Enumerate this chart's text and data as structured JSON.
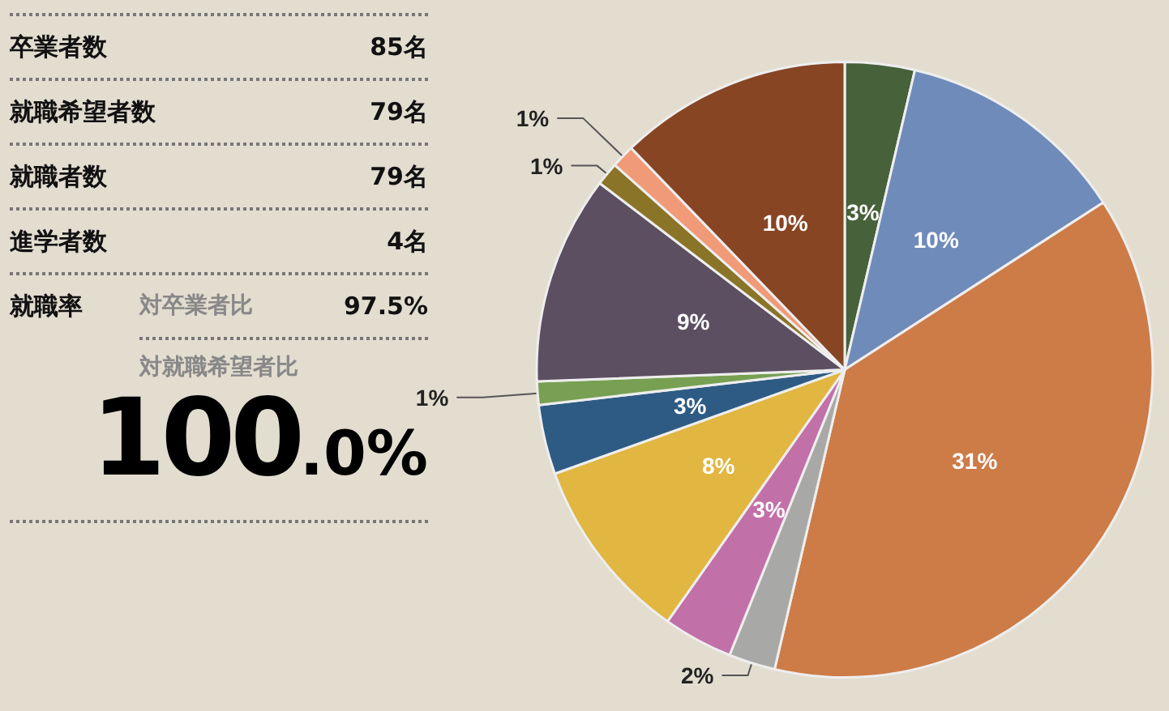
{
  "chart_data": [
    {
      "type": "other",
      "annotations": [
        "卒業者数",
        "85名",
        "就職希望者数",
        "79名",
        "就職者数",
        "79名",
        "進学者数",
        "4名",
        "就職率",
        "対卒業者比",
        "97.5%",
        "対就職希望者比",
        "100.0%"
      ]
    },
    {
      "type": "pie",
      "categories": [
        null,
        null,
        null,
        null,
        null,
        null,
        null,
        null,
        null,
        null,
        null,
        null
      ],
      "values": [
        3,
        10,
        31,
        2,
        3,
        8,
        3,
        1,
        9,
        1,
        1,
        10
      ],
      "value_labels": [
        "3%",
        "10%",
        "31%",
        "2%",
        "3%",
        "8%",
        "3%",
        "1%",
        "9%",
        "1%",
        "1%",
        "10%"
      ],
      "colors": [
        "#47613a",
        "#6f8bba",
        "#cd7b47",
        "#a8a9a6",
        "#c270a8",
        "#e1b641",
        "#2e5b84",
        "#78a052",
        "#5d4f62",
        "#8a7428",
        "#f09a78",
        "#874524"
      ]
    }
  ]
}
